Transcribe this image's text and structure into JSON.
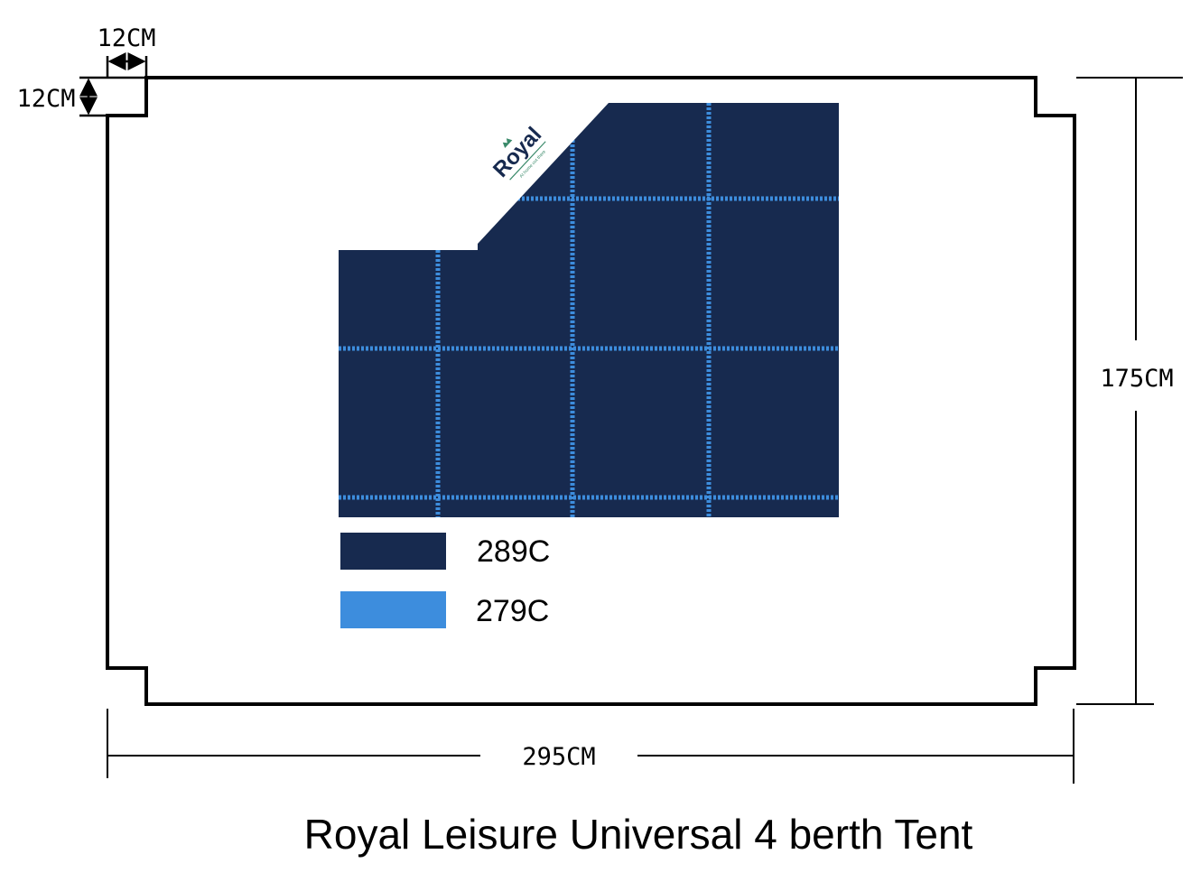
{
  "title": "Royal Leisure Universal 4 berth Tent",
  "dimensions": {
    "notch_width": "12CM",
    "notch_height": "12CM",
    "height": "175CM",
    "width": "295CM"
  },
  "logo": {
    "brand": "Royal",
    "tagline": "At home out there"
  },
  "legend": [
    {
      "label": "289C",
      "color": "#172a4f"
    },
    {
      "label": "279C",
      "color": "#3d8ddd"
    }
  ]
}
